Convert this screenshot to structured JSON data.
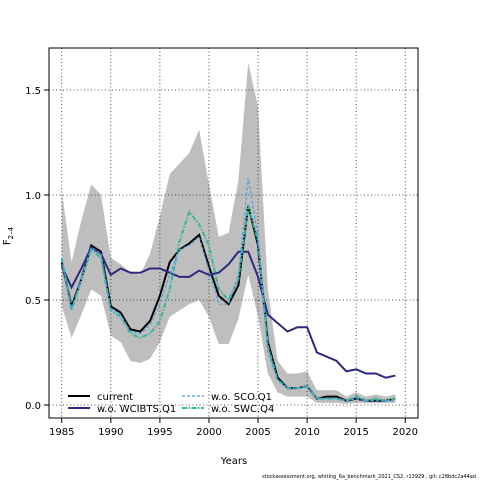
{
  "chart_data": {
    "type": "line",
    "xlabel": "Years",
    "ylabel": {
      "text": "F",
      "subscript": "2–4"
    },
    "footer": "stockassessment.org, whiting_6a_benchmark_2021_CS2, r13929 , git: c28bdc2a44ad",
    "x": [
      1985,
      1986,
      1987,
      1988,
      1989,
      1990,
      1991,
      1992,
      1993,
      1994,
      1995,
      1996,
      1997,
      1998,
      1999,
      2000,
      2001,
      2002,
      2003,
      2004,
      2005,
      2006,
      2007,
      2008,
      2009,
      2010,
      2011,
      2012,
      2013,
      2014,
      2015,
      2016,
      2017,
      2018,
      2019
    ],
    "xlim": [
      1983.7,
      2021.3
    ],
    "xticks": [
      1985,
      1990,
      1995,
      2000,
      2005,
      2010,
      2015,
      2020
    ],
    "ylim": [
      -0.062,
      1.7
    ],
    "yticks": [
      {
        "value": 0,
        "label": "0.0"
      },
      {
        "value": 0.5,
        "label": "0.5"
      },
      {
        "value": 1,
        "label": "1.0"
      },
      {
        "value": 1.5,
        "label": "1.5"
      }
    ],
    "grid": true,
    "legend": "lower left",
    "band": {
      "color": "#bebebe",
      "upper": [
        1.02,
        0.68,
        0.88,
        1.05,
        1.0,
        0.7,
        0.67,
        0.63,
        0.62,
        0.72,
        0.9,
        1.1,
        1.15,
        1.2,
        1.31,
        1.05,
        0.8,
        0.82,
        1.07,
        1.63,
        1.42,
        0.55,
        0.21,
        0.15,
        0.15,
        0.16,
        0.07,
        0.07,
        0.07,
        0.04,
        0.06,
        0.04,
        0.05,
        0.04,
        0.05
      ],
      "lower": [
        0.47,
        0.32,
        0.43,
        0.55,
        0.52,
        0.33,
        0.3,
        0.21,
        0.2,
        0.22,
        0.3,
        0.42,
        0.45,
        0.48,
        0.5,
        0.42,
        0.29,
        0.29,
        0.41,
        0.62,
        0.42,
        0.15,
        0.06,
        0.04,
        0.04,
        0.04,
        0.01,
        0.01,
        0.01,
        0.005,
        0.01,
        0.01,
        0.01,
        0.01,
        0.01
      ]
    },
    "series": [
      {
        "name": "current",
        "color": "#000000",
        "dash": "solid",
        "values": [
          0.68,
          0.47,
          0.6,
          0.76,
          0.73,
          0.47,
          0.44,
          0.36,
          0.35,
          0.4,
          0.52,
          0.68,
          0.74,
          0.77,
          0.81,
          0.66,
          0.52,
          0.48,
          0.57,
          0.95,
          0.76,
          0.3,
          0.13,
          0.08,
          0.08,
          0.09,
          0.03,
          0.04,
          0.04,
          0.02,
          0.03,
          0.02,
          0.02,
          0.02,
          0.03
        ]
      },
      {
        "name": "w.o. WCIBTS.Q1",
        "color": "#2e2a7e",
        "dash": "solid",
        "values": [
          0.66,
          0.56,
          0.65,
          0.75,
          0.72,
          0.62,
          0.65,
          0.63,
          0.63,
          0.65,
          0.65,
          0.63,
          0.61,
          0.61,
          0.64,
          0.62,
          0.63,
          0.67,
          0.73,
          0.73,
          0.61,
          0.43,
          0.39,
          0.35,
          0.37,
          0.37,
          0.25,
          0.23,
          0.21,
          0.16,
          0.17,
          0.15,
          0.15,
          0.13,
          0.14
        ]
      },
      {
        "name": "w.o. SCO.Q1",
        "color": "#4aa3e6",
        "dash": "dashed",
        "values": [
          0.69,
          0.46,
          0.6,
          0.75,
          0.72,
          0.46,
          0.43,
          0.35,
          0.34,
          0.38,
          0.48,
          0.62,
          0.74,
          0.76,
          0.8,
          0.64,
          0.48,
          0.48,
          0.62,
          1.08,
          0.8,
          0.25,
          0.12,
          0.08,
          0.08,
          0.09,
          0.03,
          0.03,
          0.03,
          0.02,
          0.03,
          0.02,
          0.02,
          0.02,
          0.02
        ]
      },
      {
        "name": "w.o. SWC.Q4",
        "color": "#3ab5a0",
        "dash": "dotdash",
        "values": [
          0.7,
          0.45,
          0.6,
          0.74,
          0.7,
          0.45,
          0.42,
          0.34,
          0.32,
          0.34,
          0.4,
          0.55,
          0.78,
          0.92,
          0.86,
          0.76,
          0.55,
          0.5,
          0.6,
          0.95,
          0.78,
          0.28,
          0.12,
          0.08,
          0.08,
          0.09,
          0.03,
          0.03,
          0.03,
          0.02,
          0.04,
          0.02,
          0.03,
          0.02,
          0.03
        ]
      }
    ]
  }
}
